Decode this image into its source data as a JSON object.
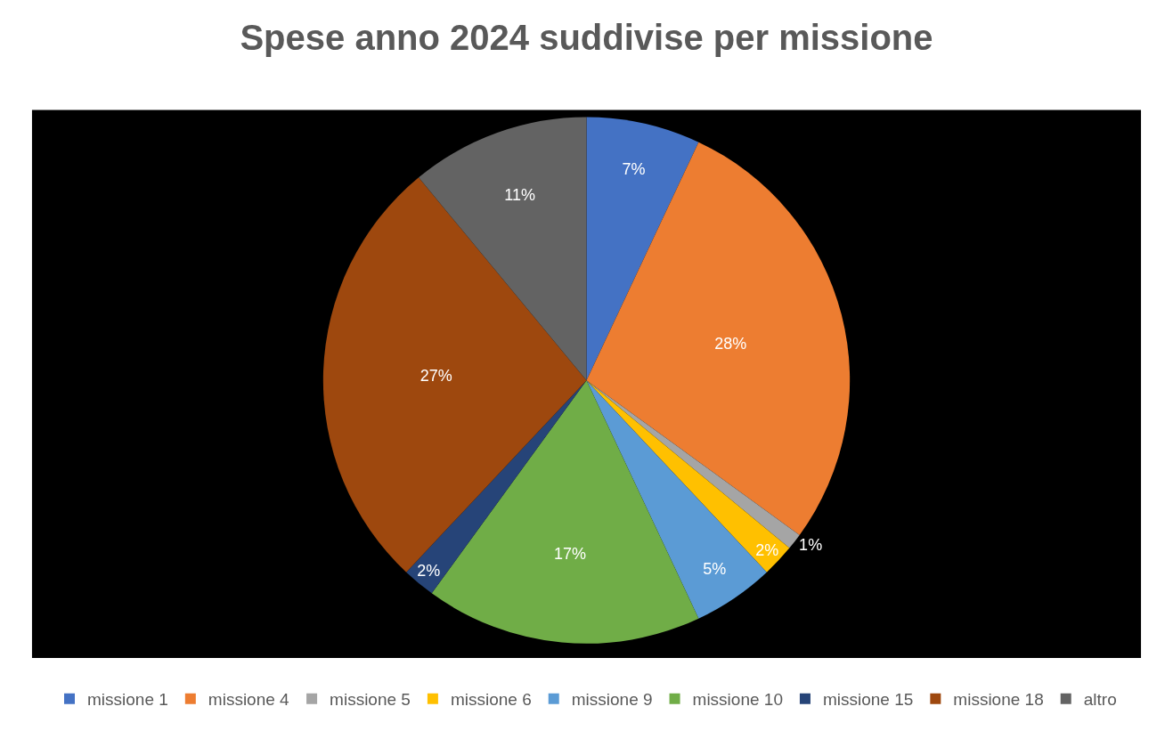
{
  "chart_data": {
    "type": "pie",
    "title": "Spese anno 2024 suddivise per missione",
    "categories": [
      "missione 1",
      "missione 4",
      "missione 5",
      "missione 6",
      "missione 9",
      "missione 10",
      "missione 15",
      "missione 18",
      "altro"
    ],
    "values": [
      7,
      28,
      1,
      2,
      5,
      17,
      2,
      27,
      11
    ],
    "value_labels": [
      "7%",
      "28%",
      "1%",
      "2%",
      "5%",
      "17%",
      "2%",
      "27%",
      "11%"
    ],
    "colors": [
      "#4472c4",
      "#ed7d31",
      "#a5a5a5",
      "#ffc000",
      "#5b9bd5",
      "#70ad47",
      "#264478",
      "#9e480e",
      "#636363"
    ],
    "legend": "bottom"
  }
}
